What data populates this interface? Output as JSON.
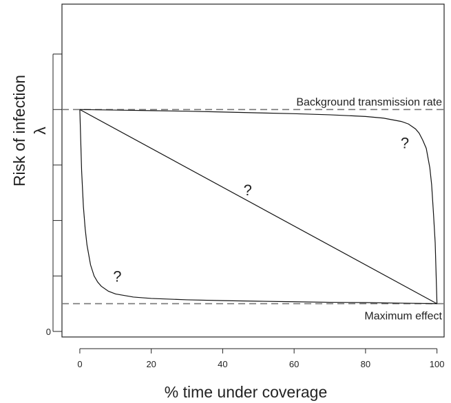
{
  "chart_data": {
    "type": "line",
    "title": "",
    "xlabel": "% time under coverage",
    "ylabel": "Risk of infection",
    "ylabel_symbol": "λ",
    "xlim": [
      -5,
      102
    ],
    "ylim": [
      -0.02,
      1.18
    ],
    "x_ticks": [
      0,
      20,
      40,
      60,
      80,
      100
    ],
    "x_tick_labels": [
      "0",
      "20",
      "40",
      "60",
      "80",
      "100"
    ],
    "y_ticks": [
      0,
      0.2,
      0.4,
      0.6,
      0.8,
      1.0
    ],
    "y_tick_labels": [
      "0",
      "",
      "",
      "",
      "",
      ""
    ],
    "grid": false,
    "reference_lines": [
      {
        "y": 0.8,
        "label": "Background transmission rate",
        "style": "dashed"
      },
      {
        "y": 0.1,
        "label": "Maximum effect",
        "style": "dashed"
      }
    ],
    "series": [
      {
        "x": [
          0,
          0.5,
          1,
          1.5,
          2,
          3,
          4,
          5,
          6,
          8,
          10,
          15,
          20,
          30,
          40,
          50,
          60,
          70,
          80,
          90,
          100
        ],
        "y": [
          0.8,
          0.58,
          0.45,
          0.37,
          0.312,
          0.24,
          0.2,
          0.178,
          0.163,
          0.145,
          0.135,
          0.124,
          0.119,
          0.114,
          0.111,
          0.109,
          0.107,
          0.105,
          0.104,
          0.102,
          0.1
        ]
      },
      {
        "x": [
          0,
          100
        ],
        "y": [
          0.8,
          0.1
        ]
      },
      {
        "x": [
          0,
          10,
          20,
          30,
          40,
          50,
          60,
          70,
          80,
          85,
          90,
          92,
          94,
          95,
          96,
          97,
          98,
          98.5,
          99,
          99.5,
          100
        ],
        "y": [
          0.8,
          0.798,
          0.796,
          0.794,
          0.791,
          0.788,
          0.785,
          0.781,
          0.775,
          0.769,
          0.757,
          0.748,
          0.73,
          0.715,
          0.69,
          0.66,
          0.59,
          0.53,
          0.43,
          0.32,
          0.1
        ]
      }
    ],
    "annotations": [
      {
        "text": "?",
        "x": 10.5,
        "y": 0.2
      },
      {
        "text": "?",
        "x": 47,
        "y": 0.51
      },
      {
        "text": "?",
        "x": 91,
        "y": 0.68
      }
    ]
  }
}
